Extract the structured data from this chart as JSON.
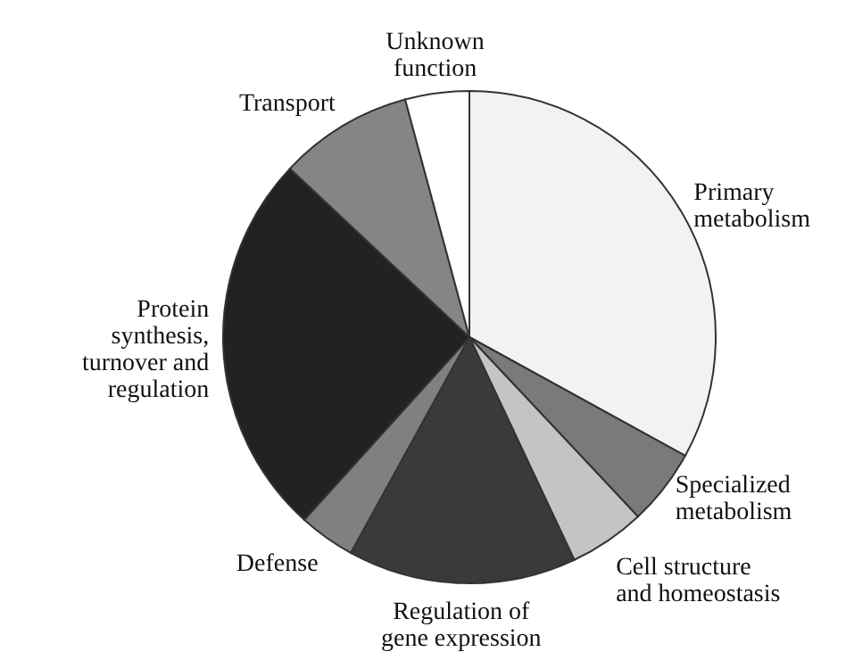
{
  "chart_data": {
    "type": "pie",
    "categories": [
      "Primary metabolism",
      "Specialized metabolism",
      "Cell structure and homeostasis",
      "Regulation of gene expression",
      "Defense",
      "Protein synthesis, turnover and regulation",
      "Transport",
      "Unknown function"
    ],
    "values": [
      33,
      5,
      5,
      15,
      3.7,
      25.3,
      8.8,
      4.2
    ],
    "colors": [
      "#f2f2f2",
      "#7a7a7a",
      "#c4c4c4",
      "#3a3a3a",
      "#808080",
      "#222222",
      "#858585",
      "#ffffff"
    ]
  }
}
